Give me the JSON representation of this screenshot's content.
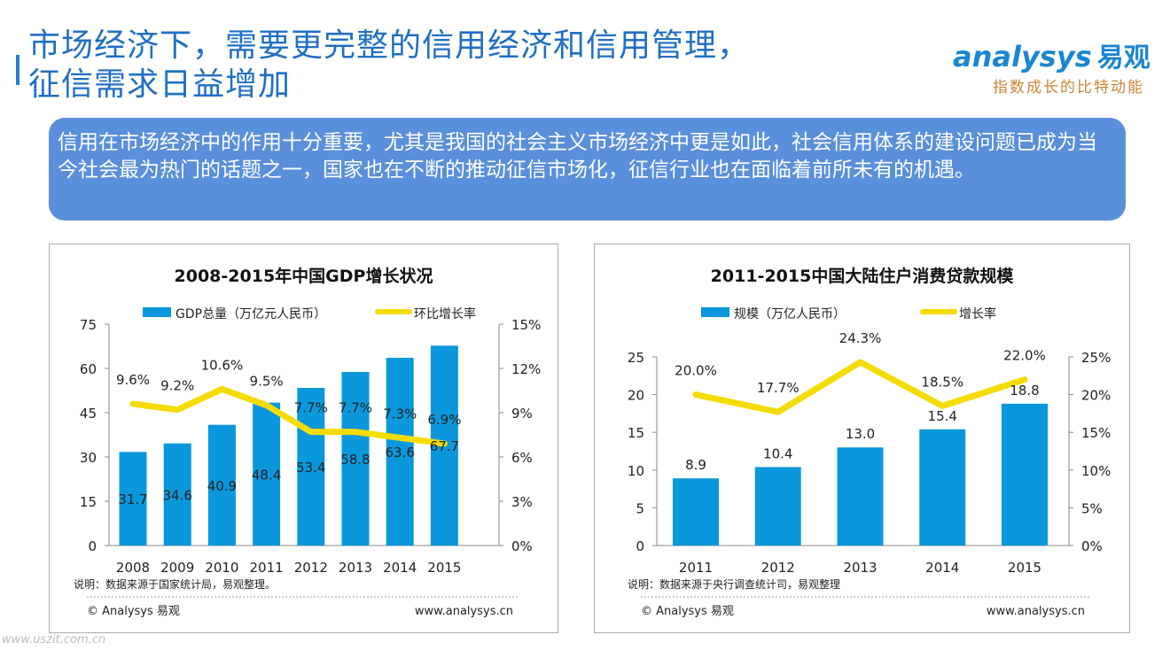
{
  "header": {
    "title_line1": "市场经济下，需要更完整的信用经济和信用管理，",
    "title_line2": "征信需求日益增加"
  },
  "logo": {
    "brand_en": "analysys",
    "brand_cn": "易观",
    "slogan": "指数成长的比特动能"
  },
  "intro": "信用在市场经济中的作用十分重要，尤其是我国的社会主义市场经济中更是如此，社会信用体系的建设问题已成为当今社会最为热门的话题之一，国家也在不断的推动征信市场化，征信行业也在面临着前所未有的机遇。",
  "watermark": "www.uszit.com.cn",
  "colors": {
    "bar": "#0b97dc",
    "line": "#f5dc00",
    "title": "#1f6fc5",
    "intro_bg": "#5a8fdb"
  },
  "chart_data": [
    {
      "type": "bar+line",
      "title": "2008-2015年中国GDP增长状况",
      "categories": [
        "2008",
        "2009",
        "2010",
        "2011",
        "2012",
        "2013",
        "2014",
        "2015"
      ],
      "series": [
        {
          "name": "GDP总量（万亿元人民币）",
          "type": "bar",
          "axis": "left",
          "values": [
            31.7,
            34.6,
            40.9,
            48.4,
            53.4,
            58.8,
            63.6,
            67.7
          ]
        },
        {
          "name": "环比增长率",
          "type": "line",
          "axis": "right",
          "values": [
            9.6,
            9.2,
            10.6,
            9.5,
            7.7,
            7.7,
            7.3,
            6.9
          ],
          "labels": [
            "9.6%",
            "9.2%",
            "10.6%",
            "9.5%",
            "7.7%",
            "7.7%",
            "7.3%",
            "6.9%"
          ]
        }
      ],
      "ylim": [
        0,
        75
      ],
      "yticks": [
        "0",
        "15",
        "30",
        "45",
        "60",
        "75"
      ],
      "y2lim": [
        0,
        15
      ],
      "y2ticks": [
        "0%",
        "3%",
        "6%",
        "9%",
        "12%",
        "15%"
      ],
      "legend": "top",
      "note": "说明：数据来源于国家统计局，易观整理。",
      "footer_left": "© Analysys 易观",
      "footer_right": "www.analysys.cn"
    },
    {
      "type": "bar+line",
      "title": "2011-2015中国大陆住户消费贷款规模",
      "categories": [
        "2011",
        "2012",
        "2013",
        "2014",
        "2015"
      ],
      "series": [
        {
          "name": "规模（万亿人民币）",
          "type": "bar",
          "axis": "left",
          "values": [
            8.9,
            10.4,
            13.0,
            15.4,
            18.8
          ],
          "labels": [
            "8.9",
            "10.4",
            "13.0",
            "15.4",
            "18.8"
          ]
        },
        {
          "name": "增长率",
          "type": "line",
          "axis": "right",
          "values": [
            20.0,
            17.7,
            24.3,
            18.5,
            22.0
          ],
          "labels": [
            "20.0%",
            "17.7%",
            "24.3%",
            "18.5%",
            "22.0%"
          ]
        }
      ],
      "ylim": [
        0,
        25
      ],
      "yticks": [
        "0",
        "5",
        "10",
        "15",
        "20",
        "25"
      ],
      "y2lim": [
        0,
        25
      ],
      "y2ticks": [
        "0%",
        "5%",
        "10%",
        "15%",
        "20%",
        "25%"
      ],
      "legend": "top",
      "note": "说明：数据来源于央行调查统计司，易观整理",
      "footer_left": "© Analysys 易观",
      "footer_right": "www.analysys.cn"
    }
  ]
}
